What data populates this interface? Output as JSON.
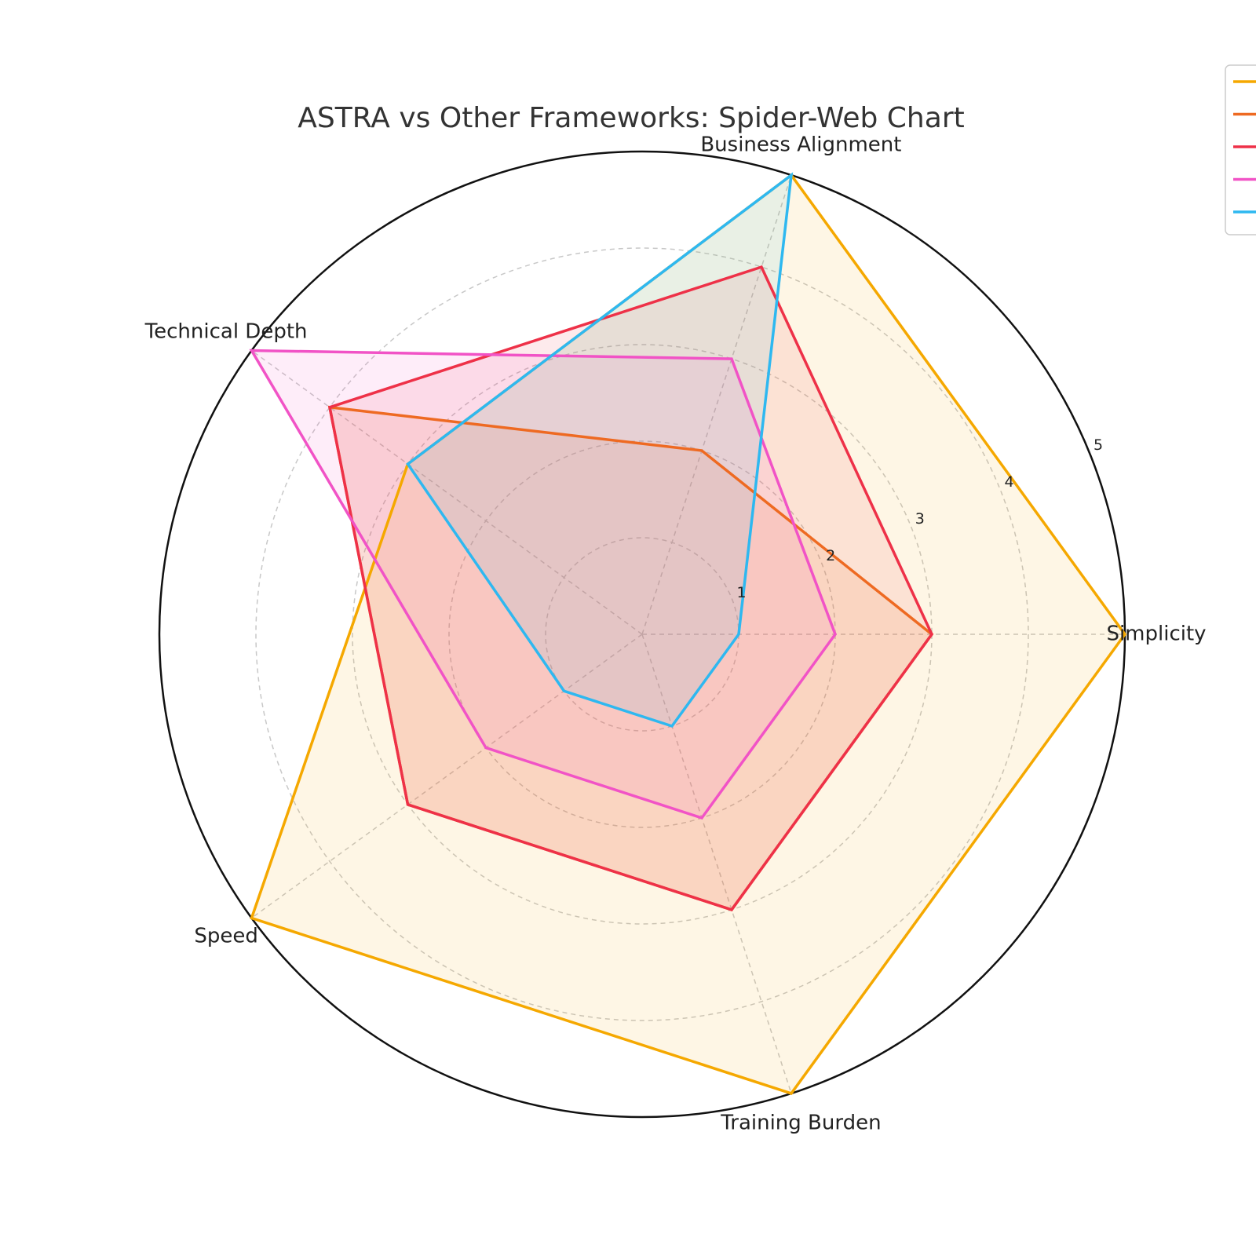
{
  "chart_data": {
    "type": "radar",
    "title": "ASTRA vs Other Frameworks: Spider-Web Chart",
    "categories": [
      "Simplicity",
      "Business Alignment",
      "Technical Depth",
      "Speed",
      "Training Burden"
    ],
    "rlim": [
      0,
      5
    ],
    "rticks": [
      1,
      2,
      3,
      4,
      5
    ],
    "grid": true,
    "legend_position": "top-right",
    "series": [
      {
        "color": "#F5A800",
        "values": [
          5,
          5,
          3,
          5,
          5
        ]
      },
      {
        "color": "#EE6A22",
        "values": [
          3,
          2,
          4,
          3,
          3
        ]
      },
      {
        "color": "#EE3148",
        "values": [
          3,
          4,
          4,
          3,
          3
        ]
      },
      {
        "color": "#F153C6",
        "values": [
          2,
          3,
          5,
          2,
          2
        ]
      },
      {
        "color": "#2EB8F0",
        "values": [
          1,
          5,
          3,
          1,
          1
        ]
      }
    ]
  }
}
